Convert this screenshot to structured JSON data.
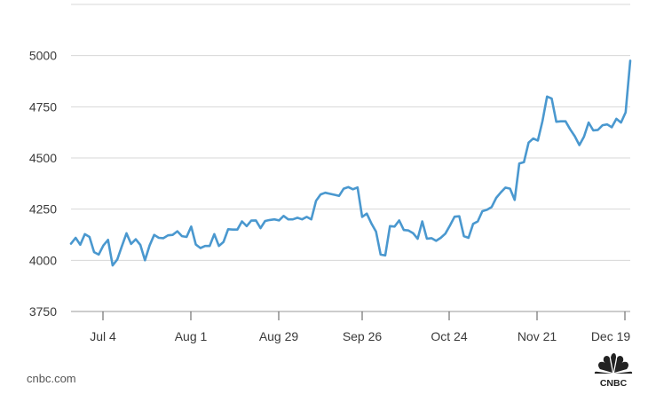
{
  "chart_data": {
    "type": "line",
    "title": "",
    "xlabel": "",
    "ylabel": "",
    "ylim": [
      3750,
      5250
    ],
    "y_ticks": [
      3750,
      4000,
      4250,
      4500,
      4750,
      5000
    ],
    "x_ticks": [
      "Jul 4",
      "Aug 1",
      "Aug 29",
      "Sep 26",
      "Oct 24",
      "Nov 21",
      "Dec 19"
    ],
    "grid": "horizontal",
    "line_color": "#4a98cf",
    "series": [
      {
        "values": [
          4081,
          4110,
          4076,
          4128,
          4114,
          4040,
          4028,
          4072,
          4100,
          3975,
          4004,
          4069,
          4132,
          4080,
          4103,
          4075,
          4000,
          4072,
          4124,
          4110,
          4108,
          4122,
          4124,
          4142,
          4118,
          4114,
          4165,
          4077,
          4060,
          4070,
          4070,
          4128,
          4070,
          4090,
          4152,
          4150,
          4150,
          4190,
          4167,
          4194,
          4195,
          4157,
          4192,
          4197,
          4200,
          4195,
          4217,
          4200,
          4200,
          4208,
          4200,
          4212,
          4200,
          4290,
          4322,
          4330,
          4325,
          4320,
          4315,
          4350,
          4358,
          4347,
          4356,
          4212,
          4228,
          4180,
          4140,
          4028,
          4024,
          4167,
          4165,
          4195,
          4148,
          4146,
          4133,
          4105,
          4190,
          4106,
          4108,
          4095,
          4110,
          4130,
          4170,
          4213,
          4215,
          4118,
          4110,
          4178,
          4190,
          4240,
          4247,
          4260,
          4305,
          4332,
          4355,
          4350,
          4295,
          4473,
          4479,
          4575,
          4595,
          4585,
          4680,
          4800,
          4790,
          4677,
          4679,
          4679,
          4640,
          4606,
          4563,
          4604,
          4673,
          4635,
          4637,
          4660,
          4664,
          4650,
          4691,
          4673,
          4723,
          4975
        ]
      }
    ]
  },
  "footer": {
    "source": "cnbc.com",
    "logo_text": "CNBC"
  }
}
